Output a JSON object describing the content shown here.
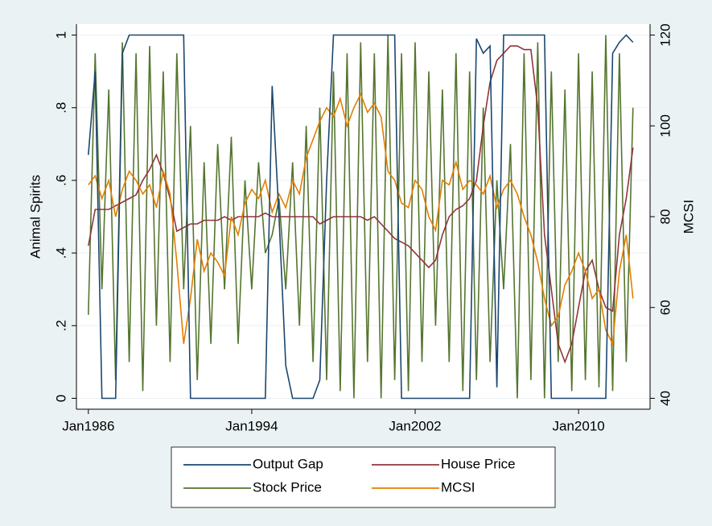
{
  "chart_data": {
    "type": "line",
    "x": [
      "Jan1986",
      "May1986",
      "Sep1986",
      "Jan1987",
      "May1987",
      "Sep1987",
      "Jan1988",
      "May1988",
      "Sep1988",
      "Jan1989",
      "May1989",
      "Sep1989",
      "Jan1990",
      "May1990",
      "Sep1990",
      "Jan1991",
      "May1991",
      "Sep1991",
      "Jan1992",
      "May1992",
      "Sep1992",
      "Jan1993",
      "May1993",
      "Sep1993",
      "Jan1994",
      "May1994",
      "Sep1994",
      "Jan1995",
      "May1995",
      "Sep1995",
      "Jan1996",
      "May1996",
      "Sep1996",
      "Jan1997",
      "May1997",
      "Sep1997",
      "Jan1998",
      "May1998",
      "Sep1998",
      "Jan1999",
      "May1999",
      "Sep1999",
      "Jan2000",
      "May2000",
      "Sep2000",
      "Jan2001",
      "May2001",
      "Sep2001",
      "Jan2002",
      "May2002",
      "Sep2002",
      "Jan2003",
      "May2003",
      "Sep2003",
      "Jan2004",
      "May2004",
      "Sep2004",
      "Jan2005",
      "May2005",
      "Sep2005",
      "Jan2006",
      "May2006",
      "Sep2006",
      "Jan2007",
      "May2007",
      "Sep2007",
      "Jan2008",
      "May2008",
      "Sep2008",
      "Jan2009",
      "May2009",
      "Sep2009",
      "Jan2010",
      "May2010",
      "Sep2010",
      "Jan2011",
      "May2011",
      "Sep2011",
      "Jan2012",
      "May2012",
      "Sep2012"
    ],
    "xlim": [
      "Jun1985",
      "Jul2013"
    ],
    "xticks": [
      "Jan1986",
      "Jan1994",
      "Jan2002",
      "Jan2010"
    ],
    "y_label": "Animal Spirits",
    "y2_label": "MCSI",
    "ylim": [
      -0.03,
      1.03
    ],
    "yticks": [
      0,
      {
        "value": 0.2,
        "label": ".2"
      },
      {
        "value": 0.4,
        "label": ".4"
      },
      {
        "value": 0.6,
        "label": ".6"
      },
      {
        "value": 0.8,
        "label": ".8"
      },
      1
    ],
    "y2lim": [
      37.6,
      122.4
    ],
    "y2ticks": [
      40,
      60,
      80,
      100,
      120
    ],
    "grid": true,
    "series": [
      {
        "name": "Output Gap",
        "color": "#1a476f",
        "values": [
          0.67,
          0.9,
          0,
          0,
          0,
          0.95,
          1,
          1,
          1,
          1,
          1,
          1,
          1,
          1,
          1,
          0,
          0,
          0,
          0,
          0,
          0,
          0,
          0,
          0,
          0,
          0,
          0,
          0.86,
          0.5,
          0.09,
          0,
          0,
          0,
          0,
          0.05,
          0.6,
          1,
          1,
          1,
          1,
          1,
          1,
          1,
          1,
          1,
          1,
          0,
          0,
          0,
          0,
          0,
          0,
          0,
          0,
          0,
          0,
          0,
          0.99,
          0.95,
          0.97,
          0.03,
          1,
          1,
          1,
          1,
          1,
          1,
          1,
          0,
          0,
          0,
          0,
          0,
          0,
          0,
          0,
          0,
          0.95,
          0.98,
          1,
          0.98
        ]
      },
      {
        "name": "House Price",
        "color": "#90353b",
        "values": [
          0.42,
          0.52,
          0.52,
          0.52,
          0.53,
          0.54,
          0.55,
          0.56,
          0.6,
          0.63,
          0.67,
          0.62,
          0.55,
          0.46,
          0.47,
          0.48,
          0.48,
          0.49,
          0.49,
          0.49,
          0.5,
          0.49,
          0.5,
          0.5,
          0.5,
          0.5,
          0.51,
          0.5,
          0.5,
          0.5,
          0.5,
          0.5,
          0.5,
          0.5,
          0.48,
          0.49,
          0.5,
          0.5,
          0.5,
          0.5,
          0.5,
          0.49,
          0.5,
          0.48,
          0.46,
          0.44,
          0.43,
          0.42,
          0.4,
          0.38,
          0.36,
          0.38,
          0.45,
          0.5,
          0.52,
          0.53,
          0.55,
          0.6,
          0.75,
          0.87,
          0.93,
          0.95,
          0.97,
          0.97,
          0.96,
          0.96,
          0.8,
          0.45,
          0.3,
          0.15,
          0.1,
          0.15,
          0.25,
          0.35,
          0.38,
          0.3,
          0.25,
          0.24,
          0.45,
          0.55,
          0.69
        ]
      },
      {
        "name": "Stock Price",
        "color": "#55752f",
        "values": [
          0.23,
          0.95,
          0.3,
          0.85,
          0.05,
          0.98,
          0.1,
          0.95,
          0.02,
          0.97,
          0.2,
          0.9,
          0.1,
          0.95,
          0.3,
          0.75,
          0.05,
          0.65,
          0.15,
          0.7,
          0.3,
          0.72,
          0.15,
          0.6,
          0.3,
          0.65,
          0.4,
          0.45,
          0.55,
          0.3,
          0.65,
          0.2,
          0.75,
          0.1,
          0.8,
          0.05,
          0.9,
          0.02,
          0.95,
          0.0,
          0.98,
          0.1,
          0.95,
          0.0,
          1.0,
          0.05,
          0.95,
          0.02,
          0.98,
          0.1,
          0.9,
          0.2,
          0.85,
          0.1,
          0.95,
          0.02,
          0.9,
          0.05,
          0.8,
          0.1,
          0.6,
          0.3,
          0.7,
          0.0,
          0.95,
          0.05,
          0.98,
          0.0,
          0.9,
          0.1,
          0.85,
          0.02,
          0.95,
          0.05,
          0.9,
          0.03,
          1.0,
          0.02,
          0.95,
          0.1,
          0.8
        ]
      },
      {
        "name": "MCSI",
        "color": "#e37e00",
        "axis": "y2",
        "values": [
          87,
          89,
          84,
          88,
          80,
          86,
          90,
          88,
          85,
          87,
          82,
          90,
          85,
          70,
          52,
          62,
          75,
          68,
          72,
          70,
          67,
          80,
          76,
          83,
          86,
          84,
          88,
          81,
          85,
          82,
          88,
          85,
          93,
          97,
          101,
          104,
          102,
          106,
          100,
          104,
          107,
          103,
          105,
          102,
          90,
          88,
          83,
          82,
          88,
          86,
          80,
          77,
          88,
          87,
          92,
          86,
          88,
          87,
          85,
          89,
          82,
          86,
          88,
          85,
          80,
          76,
          70,
          62,
          56,
          58,
          65,
          68,
          72,
          68,
          62,
          64,
          55,
          52,
          68,
          76,
          62
        ]
      }
    ]
  }
}
